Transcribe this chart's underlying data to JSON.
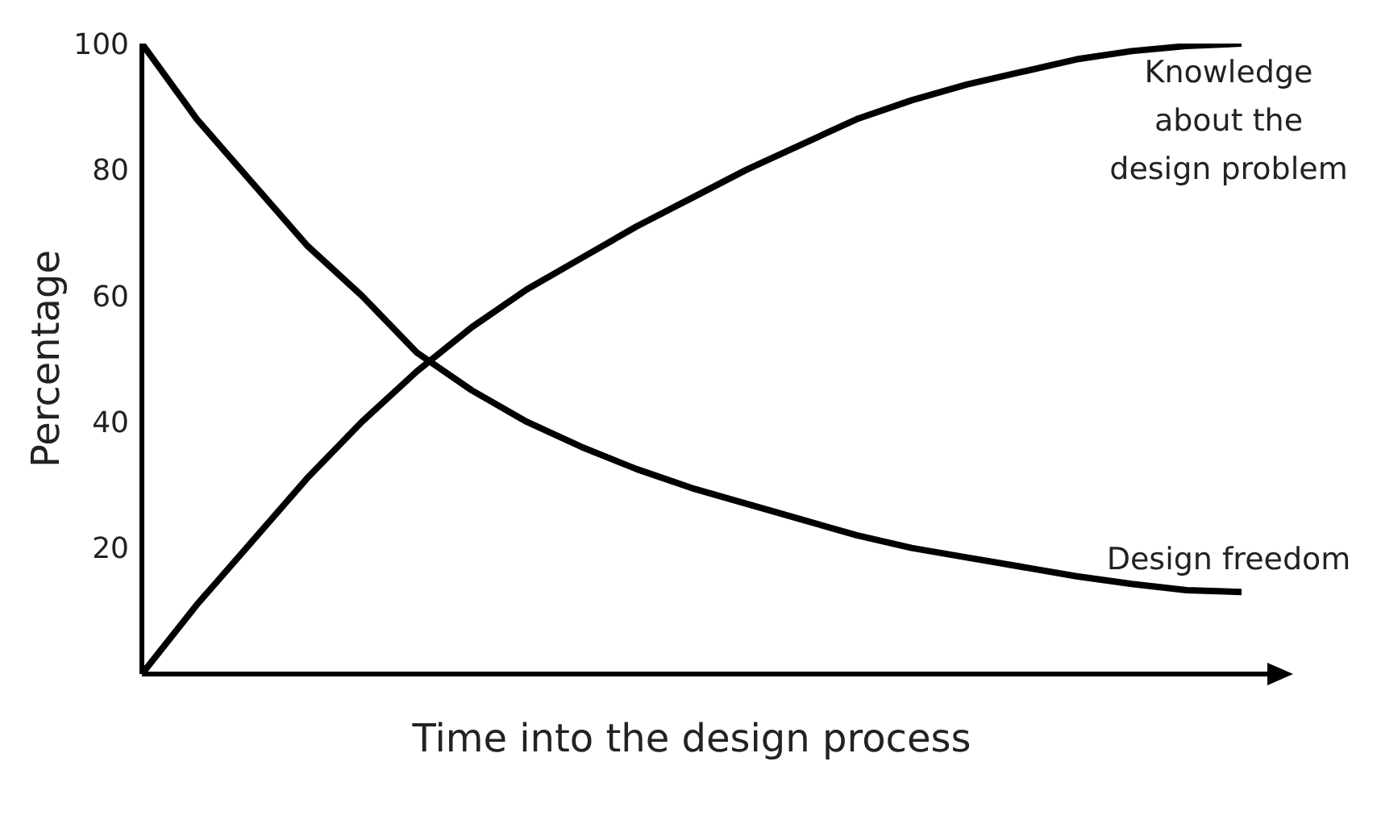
{
  "chart_data": {
    "type": "line",
    "xlabel": "Time into the design process",
    "ylabel": "Percentage",
    "categories": [
      null,
      null,
      null,
      null,
      null,
      null,
      null,
      null,
      null,
      null,
      null,
      null,
      null,
      null,
      null,
      null,
      null,
      null,
      null,
      null,
      null
    ],
    "series": [
      {
        "name": "Knowledge about the design problem",
        "color": "#000000",
        "values": [
          0,
          11,
          21,
          31,
          40,
          48,
          55,
          61,
          66,
          71,
          75.5,
          80,
          84,
          88,
          91,
          93.5,
          95.5,
          97.5,
          98.8,
          99.6,
          100
        ]
      },
      {
        "name": "Design freedom",
        "color": "#000000",
        "values": [
          100,
          88,
          78,
          68,
          60,
          51,
          45,
          40,
          36,
          32.5,
          29.5,
          27,
          24.5,
          22,
          20,
          18.5,
          17,
          15.5,
          14.3,
          13.3,
          13
        ]
      }
    ],
    "ylim": [
      0,
      100
    ],
    "yticks": [
      20,
      40,
      60,
      80,
      100
    ],
    "grid": false,
    "legend": false,
    "tick_labels": "y",
    "marker": "none",
    "line_style": "solid"
  }
}
